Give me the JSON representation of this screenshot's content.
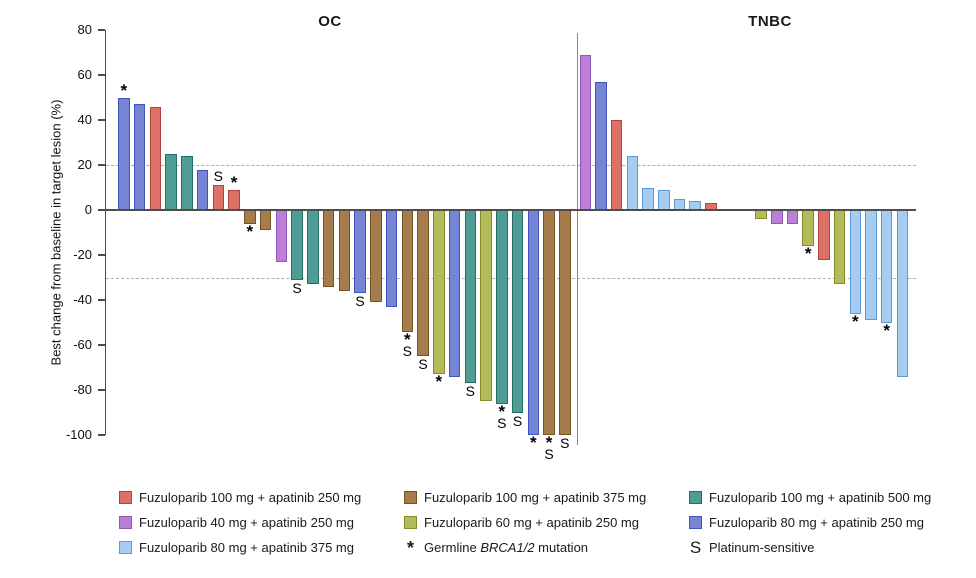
{
  "chart_data": {
    "type": "bar",
    "subtype": "waterfall",
    "title": "",
    "ylabel": "Best change from baseline in target lesion (%)",
    "xlabel": "",
    "ylim": [
      -100,
      80
    ],
    "yticks": [
      80,
      60,
      40,
      20,
      0,
      -20,
      -40,
      -60,
      -80,
      -100
    ],
    "reference_lines_y": [
      20,
      -30
    ],
    "grid": "dashed reference lines only",
    "legend_position": "bottom",
    "marker_meanings": {
      "*": "Germline BRCA1/2 mutation",
      "S": "Platinum-sensitive"
    },
    "panels": [
      {
        "label": "OC",
        "bars": [
          {
            "value": 50,
            "color": "violet",
            "marks": [
              "*"
            ]
          },
          {
            "value": 47,
            "color": "violet"
          },
          {
            "value": 46,
            "color": "red"
          },
          {
            "value": 25,
            "color": "teal"
          },
          {
            "value": 24,
            "color": "teal"
          },
          {
            "value": 18,
            "color": "violet"
          },
          {
            "value": 11,
            "color": "red",
            "marks": [
              "S"
            ]
          },
          {
            "value": 9,
            "color": "red",
            "marks": [
              "*"
            ]
          },
          {
            "value": -6,
            "color": "brown",
            "marks": [
              "*"
            ]
          },
          {
            "value": -9,
            "color": "brown"
          },
          {
            "value": -23,
            "color": "purple"
          },
          {
            "value": -31,
            "color": "teal",
            "marks": [
              "S"
            ]
          },
          {
            "value": -33,
            "color": "teal"
          },
          {
            "value": -34,
            "color": "brown"
          },
          {
            "value": -36,
            "color": "brown"
          },
          {
            "value": -37,
            "color": "violet",
            "marks": [
              "S"
            ]
          },
          {
            "value": -41,
            "color": "brown"
          },
          {
            "value": -43,
            "color": "violet"
          },
          {
            "value": -54,
            "color": "brown",
            "marks": [
              "*",
              "S"
            ]
          },
          {
            "value": -65,
            "color": "brown",
            "marks": [
              "S"
            ]
          },
          {
            "value": -73,
            "color": "olive",
            "marks": [
              "*"
            ]
          },
          {
            "value": -74,
            "color": "violet"
          },
          {
            "value": -77,
            "color": "teal",
            "marks": [
              "S"
            ]
          },
          {
            "value": -85,
            "color": "olive"
          },
          {
            "value": -86,
            "color": "teal",
            "marks": [
              "*",
              "S"
            ]
          },
          {
            "value": -90,
            "color": "teal",
            "marks": [
              "S"
            ]
          },
          {
            "value": -100,
            "color": "violet",
            "marks": [
              "*"
            ]
          },
          {
            "value": -100,
            "color": "brown",
            "marks": [
              "*",
              "S"
            ]
          },
          {
            "value": -100,
            "color": "brown",
            "marks": [
              "S"
            ]
          }
        ]
      },
      {
        "label": "TNBC",
        "gap_after_bar_index": 8,
        "gap_slots": 2.2,
        "bars": [
          {
            "value": 69,
            "color": "purple"
          },
          {
            "value": 57,
            "color": "violet"
          },
          {
            "value": 40,
            "color": "red"
          },
          {
            "value": 24,
            "color": "lightblue"
          },
          {
            "value": 10,
            "color": "lightblue"
          },
          {
            "value": 9,
            "color": "lightblue"
          },
          {
            "value": 5,
            "color": "lightblue"
          },
          {
            "value": 4,
            "color": "lightblue"
          },
          {
            "value": 3,
            "color": "red"
          },
          {
            "value": -4,
            "color": "olive"
          },
          {
            "value": -6,
            "color": "purple"
          },
          {
            "value": -6,
            "color": "purple"
          },
          {
            "value": -16,
            "color": "olive",
            "marks": [
              "*"
            ]
          },
          {
            "value": -22,
            "color": "red"
          },
          {
            "value": -33,
            "color": "olive"
          },
          {
            "value": -46,
            "color": "lightblue",
            "marks": [
              "*"
            ]
          },
          {
            "value": -49,
            "color": "lightblue"
          },
          {
            "value": -50,
            "color": "lightblue",
            "marks": [
              "*"
            ]
          },
          {
            "value": -74,
            "color": "lightblue"
          }
        ]
      }
    ]
  },
  "colors": {
    "red": {
      "fill": "#DC7168",
      "stroke": "#B0453E"
    },
    "purple": {
      "fill": "#BB80D5",
      "stroke": "#9455B8"
    },
    "lightblue": {
      "fill": "#A6CDF0",
      "stroke": "#5C9CD8"
    },
    "brown": {
      "fill": "#A67C4E",
      "stroke": "#775322"
    },
    "olive": {
      "fill": "#B5BB58",
      "stroke": "#858B30"
    },
    "teal": {
      "fill": "#4E9C93",
      "stroke": "#257065"
    },
    "violet": {
      "fill": "#7584D3",
      "stroke": "#4153BC"
    }
  },
  "legend": {
    "columns": [
      {
        "items": [
          {
            "color": "red",
            "parts": [
              {
                "text": "Fuzuloparib 100 mg + apatinib 250 mg"
              }
            ]
          },
          {
            "color": "purple",
            "parts": [
              {
                "text": "Fuzuloparib 40 mg + apatinib 250 mg"
              }
            ]
          },
          {
            "color": "lightblue",
            "parts": [
              {
                "text": "Fuzuloparib 80 mg + apatinib 375 mg"
              }
            ]
          }
        ]
      },
      {
        "items": [
          {
            "color": "brown",
            "parts": [
              {
                "text": "Fuzuloparib 100 mg + apatinib 375 mg"
              }
            ]
          },
          {
            "color": "olive",
            "parts": [
              {
                "text": "Fuzuloparib 60 mg + apatinib 250 mg"
              }
            ]
          },
          {
            "symbol": "*",
            "parts": [
              {
                "text": "Germline "
              },
              {
                "text": "BRCA1/2",
                "italic": true
              },
              {
                "text": " mutation"
              }
            ]
          }
        ]
      },
      {
        "items": [
          {
            "color": "teal",
            "parts": [
              {
                "text": "Fuzuloparib 100 mg + apatinib 500 mg"
              }
            ]
          },
          {
            "color": "violet",
            "parts": [
              {
                "text": "Fuzuloparib 80 mg + apatinib 250 mg"
              }
            ]
          },
          {
            "symbol": "S",
            "parts": [
              {
                "text": "Platinum-sensitive"
              }
            ]
          }
        ]
      }
    ]
  }
}
